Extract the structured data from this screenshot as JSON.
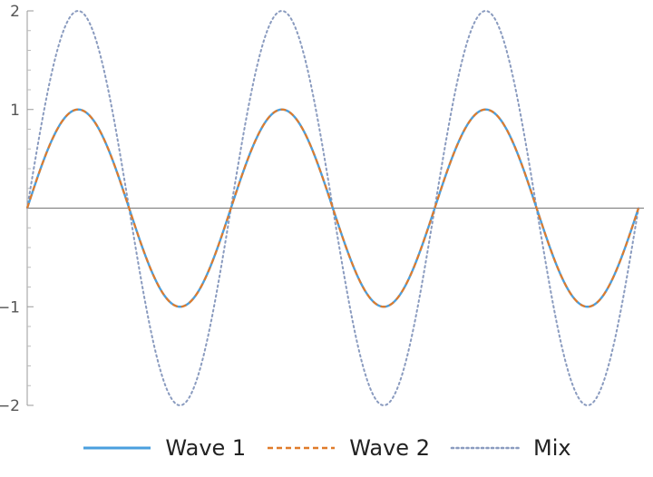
{
  "chart_data": {
    "type": "line",
    "title": "",
    "xlabel": "",
    "ylabel": "",
    "x_range": [
      0,
      18.85
    ],
    "ylim": [
      -2,
      2
    ],
    "y_ticks": [
      -2,
      -1,
      1,
      2
    ],
    "y_tick_labels": [
      "−2",
      "−1",
      "1",
      "2"
    ],
    "x_ticks": [],
    "grid": false,
    "legend_position": "bottom",
    "series": [
      {
        "name": "Wave 1",
        "function": "sin(x)",
        "amplitude": 1,
        "color": "#4a9fde",
        "style": "solid",
        "x": [
          0,
          1.571,
          3.142,
          4.712,
          6.283,
          7.854,
          9.425,
          10.996,
          12.566,
          14.137,
          15.708,
          17.279,
          18.85
        ],
        "y": [
          0,
          1,
          0,
          -1,
          0,
          1,
          0,
          -1,
          0,
          1,
          0,
          -1,
          0
        ]
      },
      {
        "name": "Wave 2",
        "function": "sin(x)",
        "amplitude": 1,
        "color": "#e07b2a",
        "style": "dashed",
        "x": [
          0,
          1.571,
          3.142,
          4.712,
          6.283,
          7.854,
          9.425,
          10.996,
          12.566,
          14.137,
          15.708,
          17.279,
          18.85
        ],
        "y": [
          0,
          1,
          0,
          -1,
          0,
          1,
          0,
          -1,
          0,
          1,
          0,
          -1,
          0
        ]
      },
      {
        "name": "Mix",
        "function": "2*sin(x)",
        "amplitude": 2,
        "color": "#8a9bbf",
        "style": "dotted",
        "x": [
          0,
          1.571,
          3.142,
          4.712,
          6.283,
          7.854,
          9.425,
          10.996,
          12.566,
          14.137,
          15.708,
          17.279,
          18.85
        ],
        "y": [
          0,
          2,
          0,
          -2,
          0,
          2,
          0,
          -2,
          0,
          2,
          0,
          -2,
          0
        ]
      }
    ]
  }
}
